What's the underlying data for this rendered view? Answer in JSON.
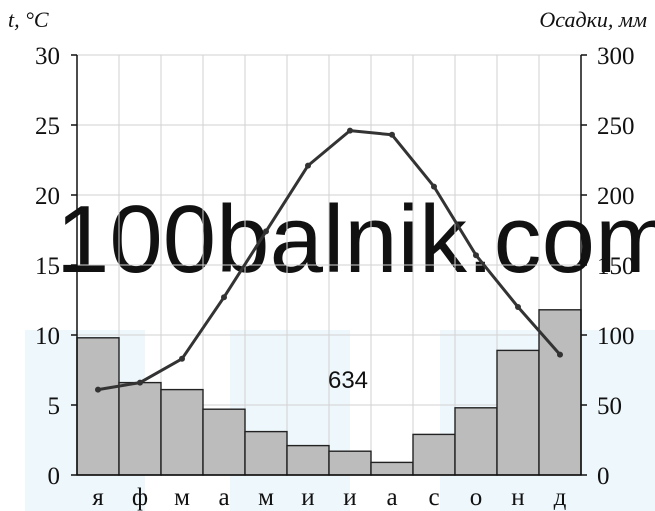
{
  "chart_data": {
    "type": "bar+line",
    "categories": [
      "я",
      "ф",
      "м",
      "а",
      "м",
      "и",
      "и",
      "а",
      "с",
      "о",
      "н",
      "д"
    ],
    "series": [
      {
        "type": "bar",
        "axis": "right",
        "values": [
          98,
          66,
          61,
          47,
          31,
          21,
          17,
          9,
          29,
          48,
          89,
          118
        ]
      },
      {
        "type": "line",
        "axis": "left",
        "values": [
          6.1,
          6.6,
          8.3,
          12.7,
          17.4,
          22.1,
          24.6,
          24.3,
          20.6,
          15.7,
          12.0,
          8.6
        ]
      }
    ],
    "ylabel_left": "t, °C",
    "ylabel_right": "Осадки, мм",
    "ylim_left": [
      0,
      30
    ],
    "ylim_right": [
      0,
      300
    ],
    "yticks_left": [
      "0",
      "5",
      "10",
      "15",
      "20",
      "25",
      "30"
    ],
    "yticks_right": [
      "0",
      "50",
      "100",
      "150",
      "200",
      "250",
      "300"
    ],
    "annotation": "634",
    "grid": true,
    "colors": {
      "bar": "#bcbcbc",
      "line": "#333333",
      "axis": "#111111",
      "grid": "#d2d2d2"
    },
    "watermark": "100balnik.com"
  }
}
